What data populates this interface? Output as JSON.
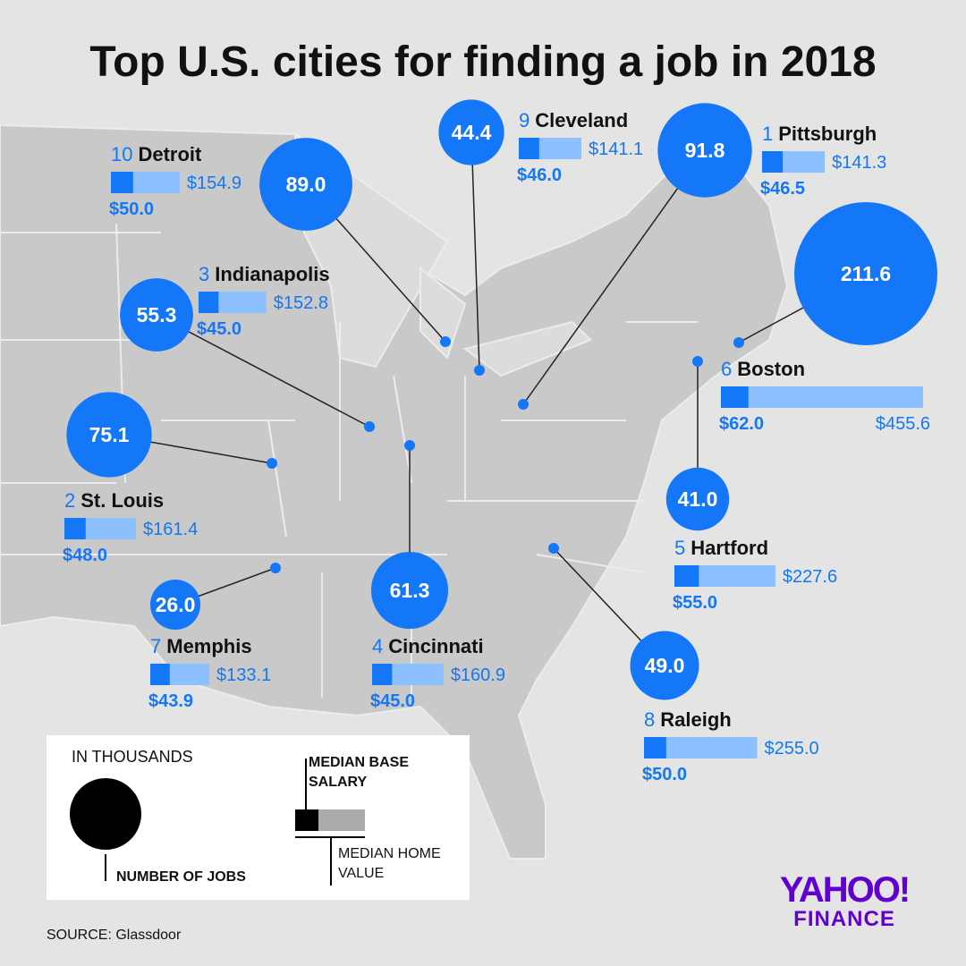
{
  "title": "Top U.S. cities for finding a job in 2018",
  "cities": [
    {
      "rank": "1",
      "name": "Pittsburgh",
      "jobs": 91.8,
      "jobs_label": "91.8",
      "salary": 46.5,
      "salary_label": "$46.5",
      "home_value": 141.3,
      "home_value_label": "$141.3"
    },
    {
      "rank": "2",
      "name": "St. Louis",
      "jobs": 75.1,
      "jobs_label": "75.1",
      "salary": 48.0,
      "salary_label": "$48.0",
      "home_value": 161.4,
      "home_value_label": "$161.4"
    },
    {
      "rank": "3",
      "name": "Indianapolis",
      "jobs": 55.3,
      "jobs_label": "55.3",
      "salary": 45.0,
      "salary_label": "$45.0",
      "home_value": 152.8,
      "home_value_label": "$152.8"
    },
    {
      "rank": "4",
      "name": "Cincinnati",
      "jobs": 61.3,
      "jobs_label": "61.3",
      "salary": 45.0,
      "salary_label": "$45.0",
      "home_value": 160.9,
      "home_value_label": "$160.9"
    },
    {
      "rank": "5",
      "name": "Hartford",
      "jobs": 41.0,
      "jobs_label": "41.0",
      "salary": 55.0,
      "salary_label": "$55.0",
      "home_value": 227.6,
      "home_value_label": "$227.6"
    },
    {
      "rank": "6",
      "name": "Boston",
      "jobs": 211.6,
      "jobs_label": "211.6",
      "salary": 62.0,
      "salary_label": "$62.0",
      "home_value": 455.6,
      "home_value_label": "$455.6"
    },
    {
      "rank": "7",
      "name": "Memphis",
      "jobs": 26.0,
      "jobs_label": "26.0",
      "salary": 43.9,
      "salary_label": "$43.9",
      "home_value": 133.1,
      "home_value_label": "$133.1"
    },
    {
      "rank": "8",
      "name": "Raleigh",
      "jobs": 49.0,
      "jobs_label": "49.0",
      "salary": 50.0,
      "salary_label": "$50.0",
      "home_value": 255.0,
      "home_value_label": "$255.0"
    },
    {
      "rank": "9",
      "name": "Cleveland",
      "jobs": 44.4,
      "jobs_label": "44.4",
      "salary": 46.0,
      "salary_label": "$46.0",
      "home_value": 141.1,
      "home_value_label": "$141.1"
    },
    {
      "rank": "10",
      "name": "Detroit",
      "jobs": 89.0,
      "jobs_label": "89.0",
      "salary": 50.0,
      "salary_label": "$50.0",
      "home_value": 154.9,
      "home_value_label": "$154.9"
    }
  ],
  "legend": {
    "units": "IN THOUSANDS",
    "circle": "NUMBER OF JOBS",
    "salary": "MEDIAN BASE SALARY",
    "home_value": "MEDIAN HOME VALUE"
  },
  "source": "SOURCE: Glassdoor",
  "logo": {
    "brand": "YAHOO!",
    "product": "FINANCE"
  }
}
